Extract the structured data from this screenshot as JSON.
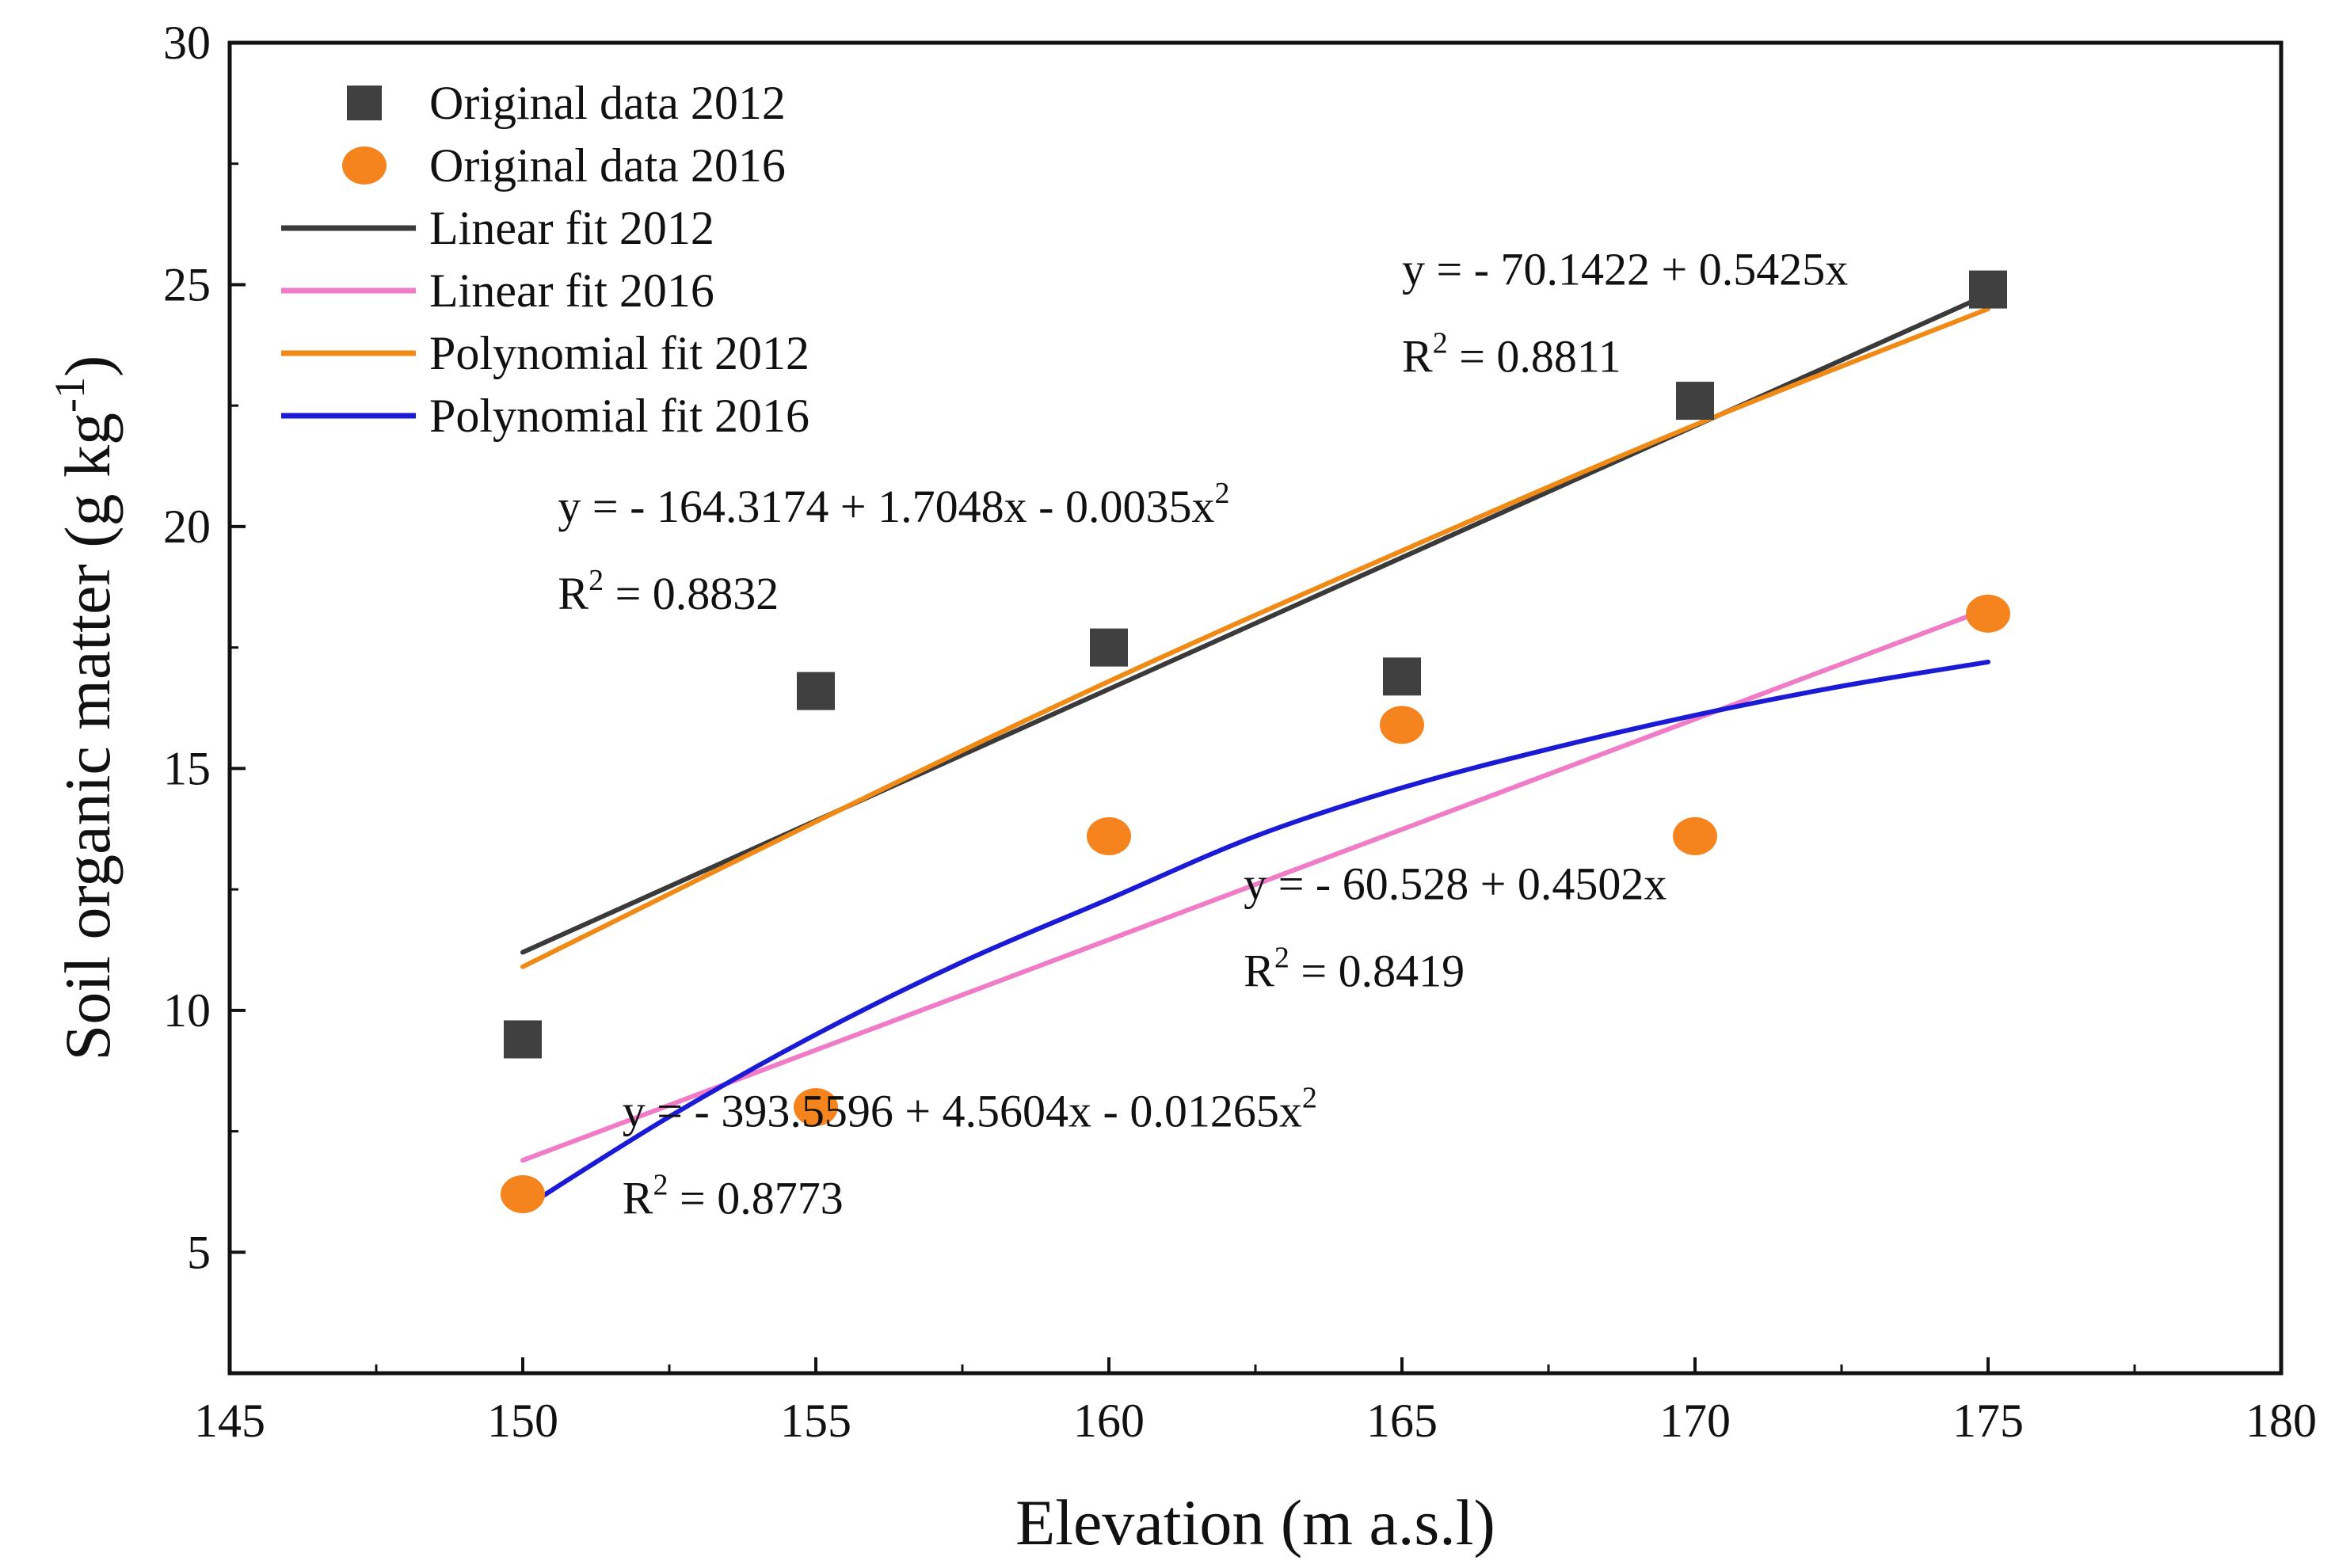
{
  "chart_data": {
    "type": "scatter",
    "xlabel": "Elevation (m a.s.l)",
    "ylabel": "Soil organic matter (g kg⁻¹)",
    "ylabel_parts": {
      "main": "Soil organic matter (g kg",
      "sup": "-1",
      "close": ")"
    },
    "xlim": [
      145,
      180
    ],
    "ylim": [
      2.5,
      30
    ],
    "xticks": [
      145,
      150,
      155,
      160,
      165,
      170,
      175,
      180
    ],
    "yticks": [
      5,
      10,
      15,
      20,
      25,
      30
    ],
    "legend_position": "top-left",
    "series": [
      {
        "name": "Original data 2012",
        "kind": "points",
        "marker": "square",
        "color": "#404040",
        "x": [
          150,
          155,
          160,
          165,
          170,
          175
        ],
        "y": [
          9.4,
          16.6,
          17.5,
          16.9,
          22.6,
          24.9
        ]
      },
      {
        "name": "Original data 2016",
        "kind": "points",
        "marker": "circle",
        "color": "#F5841F",
        "x": [
          150,
          155,
          160,
          165,
          170,
          175
        ],
        "y": [
          6.2,
          8.0,
          13.6,
          15.9,
          13.6,
          18.2
        ]
      },
      {
        "name": "Linear fit 2012",
        "kind": "line",
        "color": "#3a3a3a",
        "x": [
          150,
          175
        ],
        "y": [
          11.2,
          24.8
        ]
      },
      {
        "name": "Linear fit 2016",
        "kind": "line",
        "color": "#F07CC8",
        "x": [
          150,
          175
        ],
        "y": [
          6.9,
          18.3
        ]
      },
      {
        "name": "Polynomial fit 2012",
        "kind": "line",
        "color": "#F08A16",
        "x": [
          150,
          155,
          160,
          165,
          170,
          175
        ],
        "y": [
          10.9,
          13.9,
          16.8,
          19.5,
          22.1,
          24.5
        ]
      },
      {
        "name": "Polynomial fit 2016",
        "kind": "line",
        "color": "#1B1BD6",
        "x": [
          150,
          152.5,
          155,
          157.5,
          160,
          162.5,
          165,
          167.5,
          170,
          172.5,
          175
        ],
        "y": [
          5.9,
          7.8,
          9.5,
          11.0,
          12.3,
          13.6,
          14.6,
          15.4,
          16.1,
          16.7,
          17.2
        ]
      }
    ],
    "annotations": [
      {
        "id": "lin2012",
        "x": 165,
        "y": 25,
        "lines": [
          {
            "parts": [
              {
                "t": "y = - 70.1422 + 0.5425x"
              }
            ]
          },
          {
            "parts": [
              {
                "t": "R"
              },
              {
                "t": "2",
                "sup": true
              },
              {
                "t": " = 0.8811"
              }
            ]
          }
        ]
      },
      {
        "id": "poly2012",
        "x": 150.6,
        "y": 20.1,
        "lines": [
          {
            "parts": [
              {
                "t": "y = - 164.3174 + 1.7048x - 0.0035x"
              },
              {
                "t": "2",
                "sup": true
              }
            ]
          },
          {
            "parts": [
              {
                "t": "R"
              },
              {
                "t": "2",
                "sup": true
              },
              {
                "t": " = 0.8832"
              }
            ]
          }
        ]
      },
      {
        "id": "lin2016",
        "x": 162.3,
        "y": 12.3,
        "lines": [
          {
            "parts": [
              {
                "t": "y = - 60.528 + 0.4502x"
              }
            ]
          },
          {
            "parts": [
              {
                "t": "R"
              },
              {
                "t": "2",
                "sup": true
              },
              {
                "t": " = 0.8419"
              }
            ]
          }
        ]
      },
      {
        "id": "poly2016",
        "x": 151.7,
        "y": 7.6,
        "lines": [
          {
            "parts": [
              {
                "t": "y = - 393.5596 + 4.5604x - 0.01265x"
              },
              {
                "t": "2",
                "sup": true
              }
            ]
          },
          {
            "parts": [
              {
                "t": "R"
              },
              {
                "t": "2",
                "sup": true
              },
              {
                "t": " = 0.8773"
              }
            ]
          }
        ]
      }
    ]
  }
}
